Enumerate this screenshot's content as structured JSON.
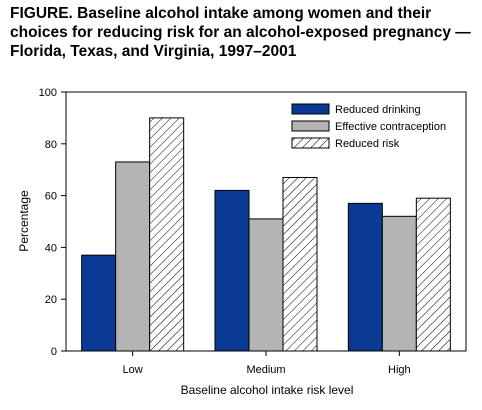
{
  "figure": {
    "title": "FIGURE. Baseline alcohol intake among women and their choices for reducing risk for an alcohol-exposed pregnancy — Florida, Texas, and Virginia, 1997–2001"
  },
  "chart_data": {
    "type": "bar",
    "categories": [
      "Low",
      "Medium",
      "High"
    ],
    "series": [
      {
        "name": "Reduced drinking",
        "values": [
          37,
          62,
          57
        ],
        "color": "#0b3a94",
        "fill": "solid"
      },
      {
        "name": "Effective contraception",
        "values": [
          73,
          51,
          52
        ],
        "color": "#b4b4b4",
        "fill": "solid"
      },
      {
        "name": "Reduced risk",
        "values": [
          90,
          67,
          59
        ],
        "color": "#ffffff",
        "fill": "diagonal-hatch"
      }
    ],
    "xlabel": "Baseline alcohol intake risk level",
    "ylabel": "Percentage",
    "ylim": [
      0,
      100
    ],
    "yticks": [
      0,
      20,
      40,
      60,
      80,
      100
    ],
    "grid": false,
    "legend_position": "top-right"
  }
}
